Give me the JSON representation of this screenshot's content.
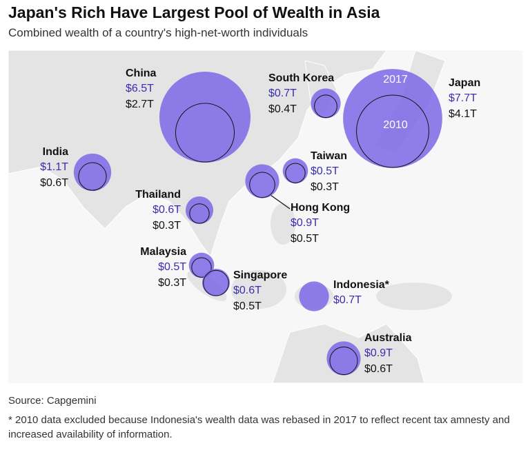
{
  "chart_data": {
    "type": "bubble",
    "title": "Japan's Rich Have Largest Pool of Wealth in Asia",
    "subtitle": "Combined wealth of a country's high-net-worth individuals",
    "categories": [
      "China",
      "South Korea",
      "Japan",
      "India",
      "Taiwan",
      "Thailand",
      "Hong Kong",
      "Malaysia",
      "Singapore",
      "Indonesia*",
      "Australia"
    ],
    "series": [
      {
        "name": "2017",
        "color": "#7d69e8",
        "label_color": "#3a2db0",
        "values": [
          6.5,
          0.7,
          7.7,
          1.1,
          0.5,
          0.6,
          0.9,
          0.5,
          0.6,
          0.7,
          0.9
        ],
        "value_labels": [
          "$6.5T",
          "$0.7T",
          "$7.7T",
          "$1.1T",
          "$0.5T",
          "$0.6T",
          "$0.9T",
          "$0.5T",
          "$0.6T",
          "$0.7T",
          "$0.9T"
        ]
      },
      {
        "name": "2010",
        "color": "#111111",
        "label_color": "#111111",
        "values": [
          2.7,
          0.4,
          4.1,
          0.6,
          0.3,
          0.3,
          0.5,
          0.3,
          0.5,
          null,
          0.6
        ],
        "value_labels": [
          "$2.7T",
          "$0.4T",
          "$4.1T",
          "$0.6T",
          "$0.3T",
          "$0.3T",
          "$0.5T",
          "$0.3T",
          "$0.5T",
          null,
          "$0.6T"
        ]
      }
    ],
    "source": "Source: Capgemini",
    "footnote": "* 2010 data excluded because Indonesia's wealth data was rebased in 2017 to reflect recent tax amnesty and increased availability of information."
  }
}
